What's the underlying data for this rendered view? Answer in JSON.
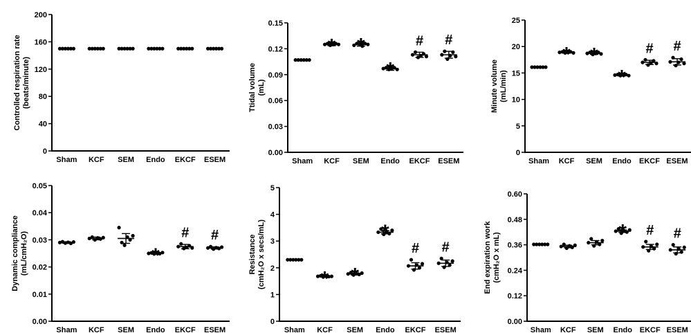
{
  "chart_data": [
    {
      "type": "scatter",
      "categories": [
        "Sham",
        "KCF",
        "SEM",
        "Endo",
        "EKCF",
        "ESEM"
      ],
      "ylabel_lines": [
        "Controlled respiration rate",
        "(beats/minute)"
      ],
      "ylim": [
        0,
        200
      ],
      "yticks": [
        "0",
        "40",
        "80",
        "120",
        "160",
        "200"
      ],
      "means": [
        150,
        150,
        150,
        150,
        150,
        150
      ],
      "errors": [
        0,
        0,
        0,
        0,
        0,
        0
      ],
      "points": [
        [
          150,
          150,
          150,
          150,
          150,
          150
        ],
        [
          150,
          150,
          150,
          150,
          150,
          150
        ],
        [
          150,
          150,
          150,
          150,
          150,
          150
        ],
        [
          150,
          150,
          150,
          150,
          150,
          150
        ],
        [
          150,
          150,
          150,
          150,
          150,
          150
        ],
        [
          150,
          150,
          150,
          150,
          150,
          150
        ]
      ],
      "marks": [
        "",
        "",
        "",
        "",
        "",
        ""
      ],
      "grid": false,
      "legend": "none"
    },
    {
      "type": "scatter",
      "categories": [
        "Sham",
        "KCF",
        "SEM",
        "Endo",
        "EKCF",
        "ESEM"
      ],
      "ylabel_lines": [
        "Ttidal volume",
        "(mL)"
      ],
      "ylim": [
        0,
        0.15
      ],
      "yticks": [
        "0.00",
        "0.03",
        "0.06",
        "0.09",
        "0.12",
        "0.15"
      ],
      "means": [
        0.107,
        0.125,
        0.125,
        0.097,
        0.113,
        0.113
      ],
      "errors": [
        0,
        0.0015,
        0.002,
        0.002,
        0.003,
        0.004
      ],
      "points": [
        [
          0.107,
          0.107,
          0.107,
          0.107,
          0.107,
          0.107
        ],
        [
          0.125,
          0.126,
          0.124,
          0.125,
          0.126,
          0.125
        ],
        [
          0.124,
          0.126,
          0.125,
          0.123,
          0.126,
          0.125
        ],
        [
          0.097,
          0.098,
          0.096,
          0.097,
          0.098,
          0.096
        ],
        [
          0.113,
          0.116,
          0.11,
          0.112,
          0.114,
          0.111
        ],
        [
          0.113,
          0.117,
          0.108,
          0.112,
          0.116,
          0.111
        ]
      ],
      "marks": [
        "",
        "*",
        "*",
        "*",
        "#",
        "#"
      ],
      "grid": false,
      "legend": "none"
    },
    {
      "type": "scatter",
      "categories": [
        "Sham",
        "KCF",
        "SEM",
        "Endo",
        "EKCF",
        "ESEM"
      ],
      "ylabel_lines": [
        "Minute volume",
        "(mL/min)"
      ],
      "ylim": [
        0,
        25
      ],
      "yticks": [
        "0",
        "5",
        "10",
        "15",
        "20",
        "25"
      ],
      "means": [
        16.1,
        18.9,
        18.7,
        14.6,
        17.0,
        17.1
      ],
      "errors": [
        0,
        0.15,
        0.2,
        0.15,
        0.4,
        0.6
      ],
      "points": [
        [
          16.1,
          16.1,
          16.1,
          16.1,
          16.1,
          16.1
        ],
        [
          18.9,
          19.0,
          18.8,
          18.9,
          19.0,
          18.8
        ],
        [
          18.7,
          18.9,
          18.5,
          18.7,
          18.9,
          18.6
        ],
        [
          14.6,
          14.7,
          14.5,
          14.6,
          14.7,
          14.5
        ],
        [
          17.0,
          17.5,
          16.5,
          16.9,
          17.3,
          16.8
        ],
        [
          17.1,
          17.9,
          16.4,
          17.0,
          17.6,
          16.8
        ]
      ],
      "marks": [
        "",
        "*",
        "*",
        "*",
        "#",
        "#"
      ],
      "grid": false,
      "legend": "none"
    },
    {
      "type": "scatter",
      "categories": [
        "Sham",
        "KCF",
        "SEM",
        "Endo",
        "EKCF",
        "ESEM"
      ],
      "ylabel_lines": [
        "Dynamic compliance",
        "(mL/cmH₂O)"
      ],
      "ylim": [
        0,
        0.05
      ],
      "yticks": [
        "0.00",
        "0.01",
        "0.02",
        "0.03",
        "0.04",
        "0.05"
      ],
      "means": [
        0.029,
        0.0305,
        0.0305,
        0.025,
        0.0275,
        0.027
      ],
      "errors": [
        0.0003,
        0.0005,
        0.0018,
        0.0003,
        0.0008,
        0.0004
      ],
      "points": [
        [
          0.029,
          0.0293,
          0.0288,
          0.0291,
          0.0287,
          0.0292
        ],
        [
          0.0305,
          0.031,
          0.03,
          0.0307,
          0.0303,
          0.0308
        ],
        [
          0.0345,
          0.029,
          0.028,
          0.031,
          0.03,
          0.0315
        ],
        [
          0.025,
          0.0252,
          0.0248,
          0.0251,
          0.0249,
          0.0253
        ],
        [
          0.0275,
          0.0285,
          0.0268,
          0.0272,
          0.0278,
          0.027
        ],
        [
          0.027,
          0.0275,
          0.0266,
          0.0271,
          0.0268,
          0.0273
        ]
      ],
      "marks": [
        "",
        "",
        "",
        "*",
        "#",
        "#"
      ],
      "grid": false,
      "legend": "none"
    },
    {
      "type": "scatter",
      "categories": [
        "Sham",
        "KCF",
        "SEM",
        "Endo",
        "EKCF",
        "ESEM"
      ],
      "ylabel_lines": [
        "Resistance",
        "(cmH₂O x secs/mL)"
      ],
      "ylim": [
        0,
        5
      ],
      "yticks": [
        "0",
        "1",
        "2",
        "3",
        "4",
        "5"
      ],
      "means": [
        2.3,
        1.68,
        1.77,
        3.33,
        2.07,
        2.17
      ],
      "errors": [
        0,
        0.02,
        0.04,
        0.06,
        0.12,
        0.12
      ],
      "points": [
        [
          2.3,
          2.3,
          2.3,
          2.3,
          2.3,
          2.3
        ],
        [
          1.68,
          1.7,
          1.66,
          1.69,
          1.67,
          1.68
        ],
        [
          1.77,
          1.82,
          1.73,
          1.78,
          1.75,
          1.8
        ],
        [
          3.33,
          3.45,
          3.25,
          3.35,
          3.28,
          3.4
        ],
        [
          2.07,
          2.3,
          1.92,
          2.1,
          2.0,
          2.15
        ],
        [
          2.17,
          2.35,
          2.02,
          2.2,
          2.1,
          2.25
        ]
      ],
      "marks": [
        "",
        "*",
        "*",
        "*",
        "#",
        "#"
      ],
      "grid": false,
      "legend": "none"
    },
    {
      "type": "scatter",
      "categories": [
        "Sham",
        "KCF",
        "SEM",
        "Endo",
        "EKCF",
        "ESEM"
      ],
      "ylabel_lines": [
        "End expiration work",
        "(cmH₂O x mL)"
      ],
      "ylim": [
        0,
        0.6
      ],
      "yticks": [
        "0.00",
        "0.12",
        "0.24",
        "0.36",
        "0.48",
        "0.60"
      ],
      "means": [
        0.362,
        0.352,
        0.37,
        0.424,
        0.35,
        0.336
      ],
      "errors": [
        0,
        0.006,
        0.01,
        0.006,
        0.012,
        0.014
      ],
      "points": [
        [
          0.362,
          0.362,
          0.362,
          0.362,
          0.362,
          0.362
        ],
        [
          0.352,
          0.362,
          0.344,
          0.355,
          0.348,
          0.358
        ],
        [
          0.37,
          0.388,
          0.355,
          0.372,
          0.362,
          0.38
        ],
        [
          0.424,
          0.435,
          0.415,
          0.426,
          0.42,
          0.43
        ],
        [
          0.35,
          0.375,
          0.332,
          0.352,
          0.342,
          0.362
        ],
        [
          0.336,
          0.36,
          0.318,
          0.34,
          0.326,
          0.348
        ]
      ],
      "marks": [
        "",
        "",
        "",
        "*",
        "#",
        "#"
      ],
      "grid": false,
      "legend": "none"
    }
  ]
}
